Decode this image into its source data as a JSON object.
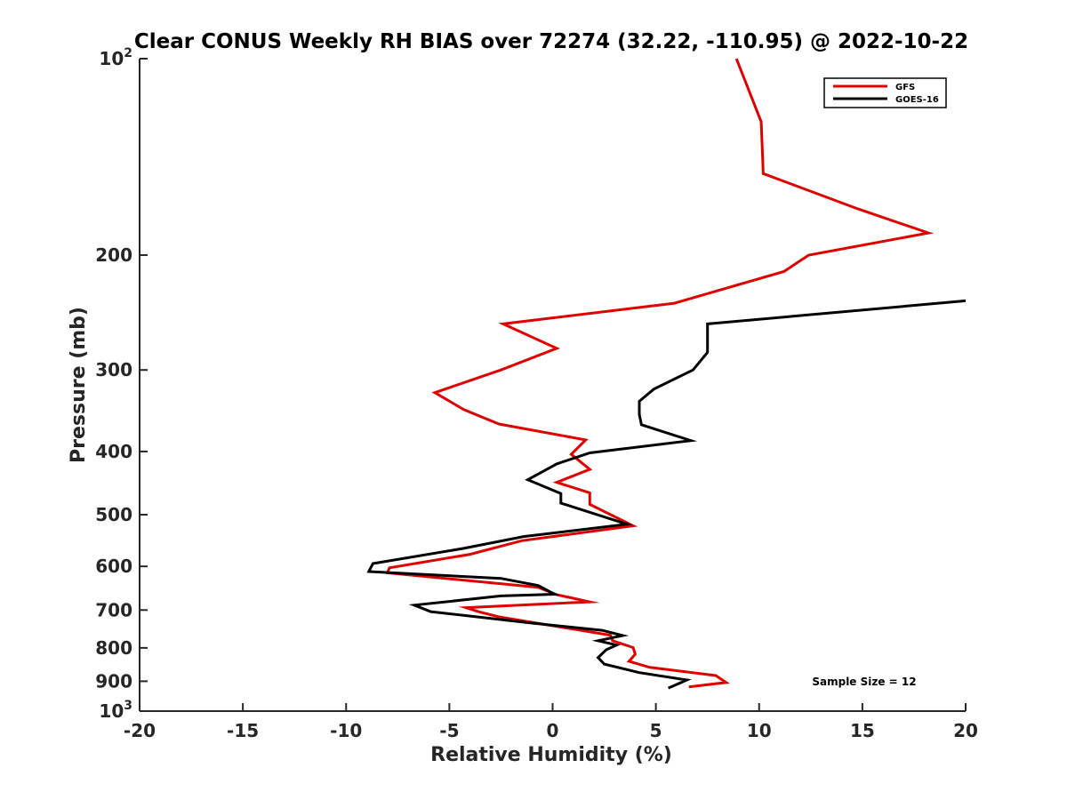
{
  "chart_data": {
    "type": "line",
    "title": "Clear CONUS Weekly RH BIAS over 72274 (32.22, -110.95) @ 2022-10-22",
    "xlabel": "Relative Humidity (%)",
    "ylabel": "Pressure (mb)",
    "xlim": [
      -20,
      20
    ],
    "ylim": [
      100,
      1000
    ],
    "y_scale": "log",
    "y_reversed": true,
    "x_ticks": [
      -20,
      -15,
      -10,
      -5,
      0,
      5,
      10,
      15,
      20
    ],
    "x_tick_labels": [
      "-20",
      "-15",
      "-10",
      "-5",
      "0",
      "5",
      "10",
      "15",
      "20"
    ],
    "y_ticks": [
      {
        "value": 100,
        "base": "10",
        "exp": "2"
      },
      {
        "value": 200,
        "base": "200",
        "exp": ""
      },
      {
        "value": 300,
        "base": "300",
        "exp": ""
      },
      {
        "value": 400,
        "base": "400",
        "exp": ""
      },
      {
        "value": 500,
        "base": "500",
        "exp": ""
      },
      {
        "value": 600,
        "base": "600",
        "exp": ""
      },
      {
        "value": 700,
        "base": "700",
        "exp": ""
      },
      {
        "value": 800,
        "base": "800",
        "exp": ""
      },
      {
        "value": 900,
        "base": "900",
        "exp": ""
      },
      {
        "value": 1000,
        "base": "10",
        "exp": "3"
      }
    ],
    "grid": false,
    "legend_position": "top-right",
    "annotation": "Sample Size = 12",
    "series": [
      {
        "name": "GFS",
        "color": "#e00000",
        "points": [
          [
            8.9,
            100
          ],
          [
            10.1,
            125
          ],
          [
            10.2,
            150
          ],
          [
            14.8,
            170
          ],
          [
            18.2,
            185
          ],
          [
            12.4,
            200
          ],
          [
            11.2,
            212
          ],
          [
            5.9,
            237
          ],
          [
            -2.4,
            255
          ],
          [
            0.2,
            278
          ],
          [
            -2.5,
            300
          ],
          [
            -5.7,
            325
          ],
          [
            -4.3,
            345
          ],
          [
            -2.6,
            363
          ],
          [
            1.6,
            384
          ],
          [
            0.9,
            404
          ],
          [
            1.8,
            426
          ],
          [
            0.2,
            446
          ],
          [
            1.8,
            463
          ],
          [
            1.8,
            482
          ],
          [
            3.9,
            520
          ],
          [
            -1.5,
            548
          ],
          [
            -4.0,
            575
          ],
          [
            -7.9,
            603
          ],
          [
            -8.0,
            614
          ],
          [
            -0.7,
            646
          ],
          [
            0.2,
            663
          ],
          [
            1.8,
            680
          ],
          [
            -4.2,
            694
          ],
          [
            -3.6,
            704
          ],
          [
            -2.6,
            717
          ],
          [
            2.8,
            765
          ],
          [
            2.9,
            780
          ],
          [
            3.9,
            799
          ],
          [
            4.0,
            818
          ],
          [
            3.7,
            839
          ],
          [
            4.7,
            857
          ],
          [
            7.9,
            882
          ],
          [
            8.4,
            904
          ],
          [
            6.6,
            918
          ]
        ]
      },
      {
        "name": "GOES-16",
        "color": "#000000",
        "points": [
          [
            20.0,
            235
          ],
          [
            7.5,
            255
          ],
          [
            7.5,
            282
          ],
          [
            6.8,
            300
          ],
          [
            4.9,
            321
          ],
          [
            4.2,
            335
          ],
          [
            4.2,
            351
          ],
          [
            4.3,
            364
          ],
          [
            6.7,
            385
          ],
          [
            1.8,
            402
          ],
          [
            0.2,
            418
          ],
          [
            -1.2,
            442
          ],
          [
            0.4,
            464
          ],
          [
            0.4,
            480
          ],
          [
            3.6,
            517
          ],
          [
            -1.4,
            540
          ],
          [
            -4.3,
            563
          ],
          [
            -8.7,
            594
          ],
          [
            -8.9,
            611
          ],
          [
            -2.5,
            626
          ],
          [
            -0.7,
            642
          ],
          [
            0.1,
            662
          ],
          [
            -2.5,
            666
          ],
          [
            -6.7,
            688
          ],
          [
            -5.9,
            704
          ],
          [
            -1.0,
            733
          ],
          [
            2.4,
            752
          ],
          [
            3.4,
            766
          ],
          [
            2.2,
            780
          ],
          [
            3.1,
            792
          ],
          [
            2.6,
            805
          ],
          [
            2.2,
            828
          ],
          [
            2.5,
            847
          ],
          [
            4.2,
            873
          ],
          [
            6.5,
            896
          ],
          [
            5.6,
            922
          ]
        ]
      }
    ]
  }
}
